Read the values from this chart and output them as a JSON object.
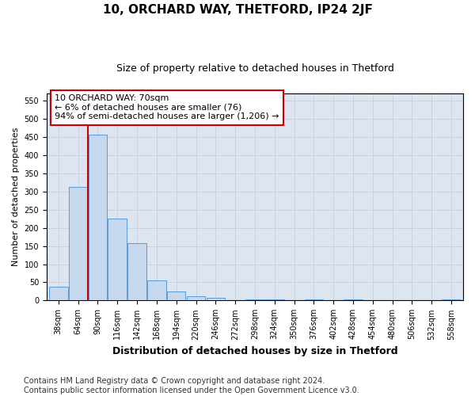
{
  "title": "10, ORCHARD WAY, THETFORD, IP24 2JF",
  "subtitle": "Size of property relative to detached houses in Thetford",
  "xlabel": "Distribution of detached houses by size in Thetford",
  "ylabel": "Number of detached properties",
  "categories": [
    "38sqm",
    "64sqm",
    "90sqm",
    "116sqm",
    "142sqm",
    "168sqm",
    "194sqm",
    "220sqm",
    "246sqm",
    "272sqm",
    "298sqm",
    "324sqm",
    "350sqm",
    "376sqm",
    "402sqm",
    "428sqm",
    "454sqm",
    "480sqm",
    "506sqm",
    "532sqm",
    "558sqm"
  ],
  "values": [
    38,
    313,
    456,
    226,
    158,
    56,
    25,
    11,
    8,
    0,
    4,
    4,
    0,
    4,
    0,
    4,
    0,
    0,
    0,
    0,
    3
  ],
  "bar_color": "#c5d8ed",
  "bar_edge_color": "#5b9bd5",
  "annotation_text": "10 ORCHARD WAY: 70sqm\n← 6% of detached houses are smaller (76)\n94% of semi-detached houses are larger (1,206) →",
  "annotation_box_color": "#ffffff",
  "annotation_box_edge_color": "#cc0000",
  "vline_color": "#cc0000",
  "vline_x_index": 1.5,
  "ylim": [
    0,
    570
  ],
  "yticks": [
    0,
    50,
    100,
    150,
    200,
    250,
    300,
    350,
    400,
    450,
    500,
    550
  ],
  "footer_text": "Contains HM Land Registry data © Crown copyright and database right 2024.\nContains public sector information licensed under the Open Government Licence v3.0.",
  "title_fontsize": 11,
  "subtitle_fontsize": 9,
  "xlabel_fontsize": 9,
  "ylabel_fontsize": 8,
  "tick_fontsize": 7,
  "annotation_fontsize": 8,
  "footer_fontsize": 7,
  "background_color": "#ffffff",
  "grid_color": "#c0ccd8",
  "fig_width": 6.0,
  "fig_height": 5.0
}
